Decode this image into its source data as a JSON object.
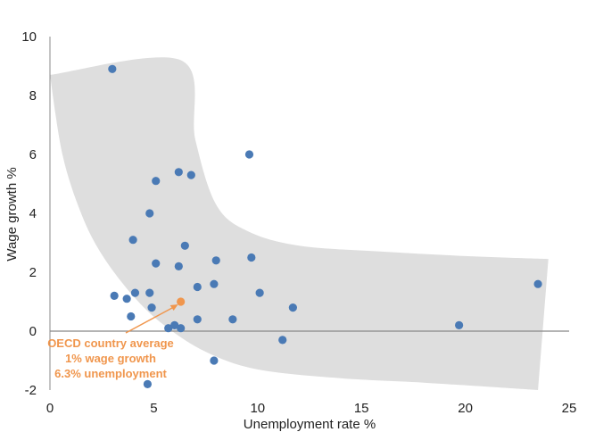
{
  "chart_data": {
    "type": "scatter",
    "xlabel": "Unemployment rate %",
    "ylabel": "Wage growth %",
    "xlim": [
      0,
      25
    ],
    "ylim": [
      -2,
      10
    ],
    "x_ticks": [
      "0",
      "5",
      "10",
      "15",
      "20",
      "25"
    ],
    "y_ticks": [
      "-2",
      "0",
      "2",
      "4",
      "6",
      "8",
      "10"
    ],
    "grid": false,
    "colors": {
      "points": "#4a7ab5",
      "highlight": "#f0964d",
      "band": "#dedede",
      "zero_line": "#888888"
    },
    "band": {
      "upper": [
        [
          0,
          8.7
        ],
        [
          6.3,
          9.2
        ],
        [
          7,
          6.5
        ],
        [
          8,
          4.3
        ],
        [
          9.5,
          3.4
        ],
        [
          12,
          2.9
        ],
        [
          16,
          2.7
        ],
        [
          20,
          2.55
        ],
        [
          24,
          2.45
        ]
      ],
      "lower": [
        [
          0,
          8.7
        ],
        [
          0.6,
          6
        ],
        [
          1.5,
          4
        ],
        [
          2.5,
          2.6
        ],
        [
          4,
          1.2
        ],
        [
          5.5,
          0.2
        ],
        [
          7.5,
          -0.7
        ],
        [
          10,
          -1.3
        ],
        [
          14,
          -1.6
        ],
        [
          18,
          -1.75
        ],
        [
          23.5,
          -2
        ]
      ]
    },
    "points": [
      {
        "x": 3.0,
        "y": 8.9
      },
      {
        "x": 9.6,
        "y": 6.0
      },
      {
        "x": 6.2,
        "y": 5.4
      },
      {
        "x": 6.8,
        "y": 5.3
      },
      {
        "x": 5.1,
        "y": 5.1
      },
      {
        "x": 4.8,
        "y": 4.0
      },
      {
        "x": 4.0,
        "y": 3.1
      },
      {
        "x": 6.5,
        "y": 2.9
      },
      {
        "x": 9.7,
        "y": 2.5
      },
      {
        "x": 8.0,
        "y": 2.4
      },
      {
        "x": 5.1,
        "y": 2.3
      },
      {
        "x": 6.2,
        "y": 2.2
      },
      {
        "x": 23.5,
        "y": 1.6
      },
      {
        "x": 7.9,
        "y": 1.6
      },
      {
        "x": 7.1,
        "y": 1.5
      },
      {
        "x": 10.1,
        "y": 1.3
      },
      {
        "x": 4.1,
        "y": 1.3
      },
      {
        "x": 4.8,
        "y": 1.3
      },
      {
        "x": 3.1,
        "y": 1.2
      },
      {
        "x": 3.7,
        "y": 1.1
      },
      {
        "x": 4.9,
        "y": 0.8
      },
      {
        "x": 11.7,
        "y": 0.8
      },
      {
        "x": 3.9,
        "y": 0.5
      },
      {
        "x": 7.1,
        "y": 0.4
      },
      {
        "x": 8.8,
        "y": 0.4
      },
      {
        "x": 19.7,
        "y": 0.2
      },
      {
        "x": 6.0,
        "y": 0.2
      },
      {
        "x": 5.7,
        "y": 0.1
      },
      {
        "x": 6.3,
        "y": 0.1
      },
      {
        "x": 11.2,
        "y": -0.3
      },
      {
        "x": 7.9,
        "y": -1.0
      },
      {
        "x": 4.7,
        "y": -1.8
      }
    ],
    "highlight": {
      "x": 6.3,
      "y": 1.0
    },
    "annotation": {
      "lines": [
        "OECD country average",
        "1% wage growth",
        "6.3% unemployment"
      ]
    }
  }
}
